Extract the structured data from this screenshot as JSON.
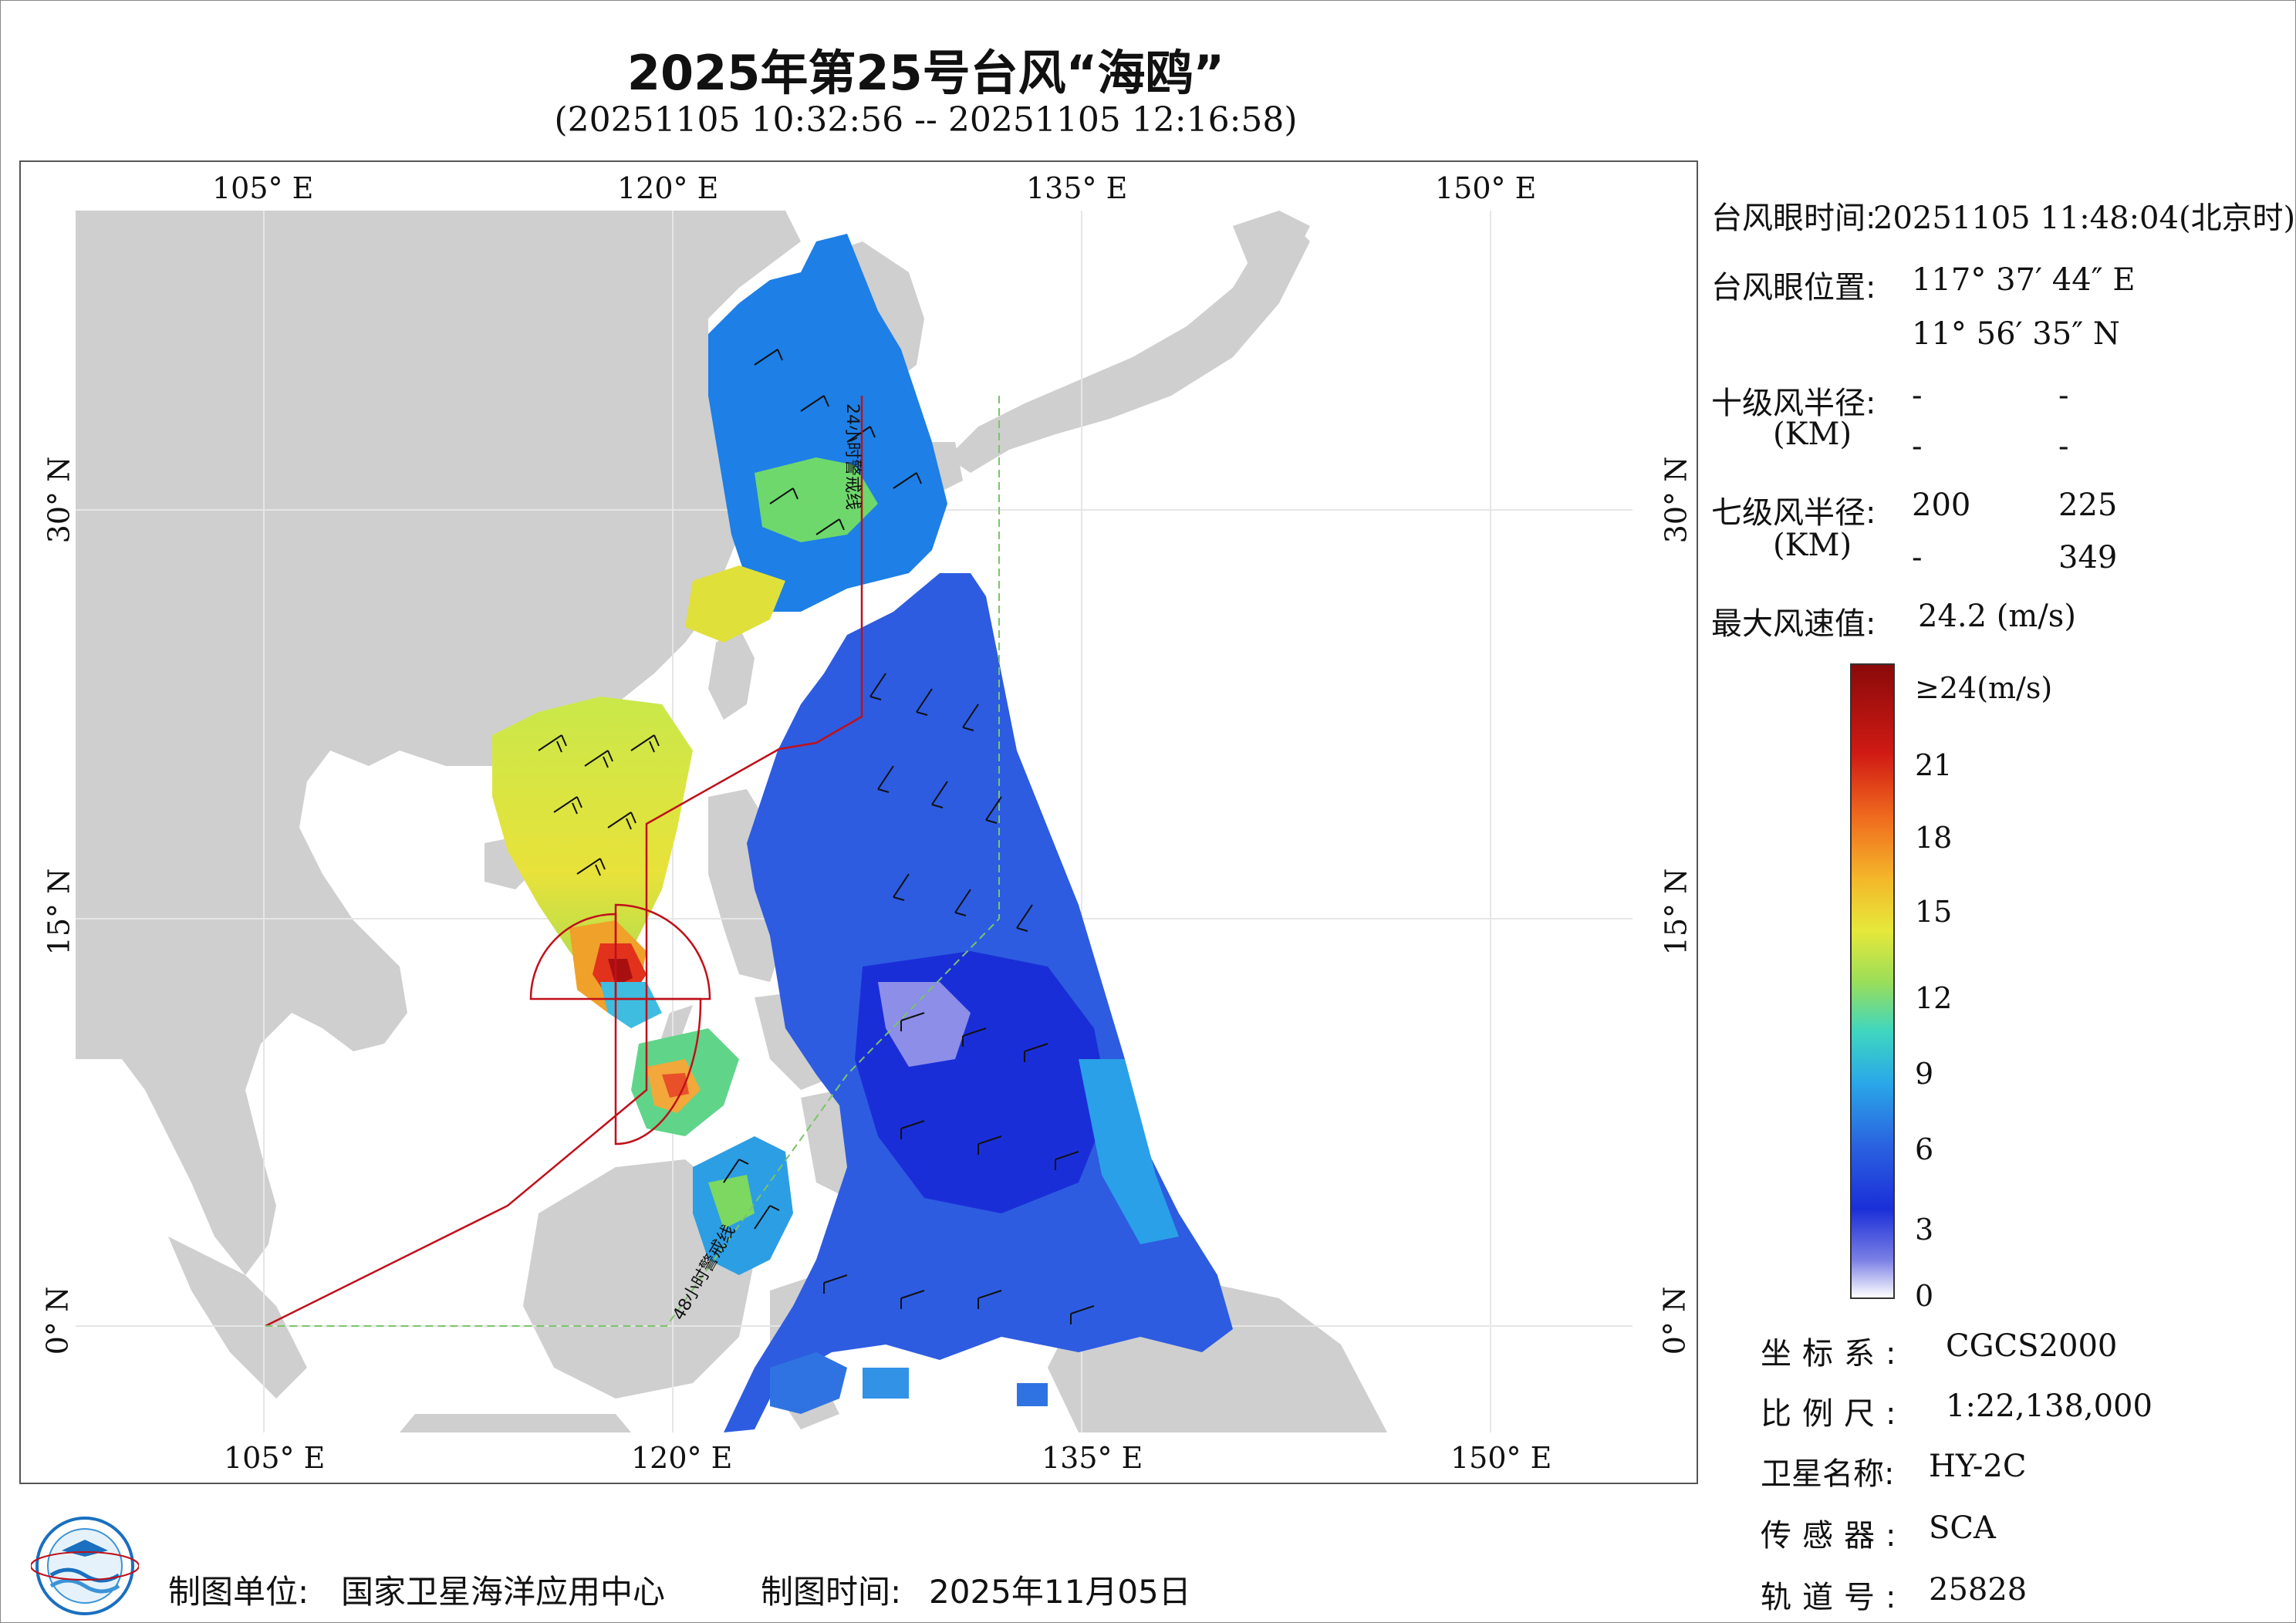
{
  "header": {
    "title": "2025年第25号台风“海鸥”",
    "subtitle": "(20251105 10:32:56 -- 20251105 12:16:58)"
  },
  "map": {
    "lon_ticks": [
      {
        "value": 105,
        "label": "105° E"
      },
      {
        "value": 120,
        "label": "120° E"
      },
      {
        "value": 135,
        "label": "135° E"
      },
      {
        "value": 150,
        "label": "150° E"
      }
    ],
    "lat_ticks": [
      {
        "value": 30,
        "label": "30° N"
      },
      {
        "value": 15,
        "label": "15° N"
      },
      {
        "value": 0,
        "label": "0° N"
      }
    ],
    "extent": {
      "lon_min": 98,
      "lon_max": 155,
      "lat_min": -4,
      "lat_max": 41
    },
    "warning_line_24h": "24小时警戒线",
    "warning_line_48h": "48小时警戒线",
    "colors": {
      "land": "#cfcfcf",
      "sea": "#ffffff",
      "warning_24h": "#c0101a",
      "warning_48h": "#7cc46a"
    }
  },
  "info": {
    "eye_time_label": "台风眼时间:",
    "eye_time_value": "20251105 11:48:04(北京时)",
    "eye_pos_label": "台风眼位置:",
    "eye_lon": "117° 37′ 44″ E",
    "eye_lat": "11° 56′ 35″ N",
    "r10_label": "十级风半径:",
    "r10_unit": "(KM)",
    "r10_values": [
      "-",
      "-",
      "-",
      "-"
    ],
    "r7_label": "七级风半径:",
    "r7_unit": "(KM)",
    "r7_values": [
      "200",
      "225",
      "-",
      "349"
    ],
    "max_wind_label": "最大风速值:",
    "max_wind_value": "24.2 (m/s)"
  },
  "legend": {
    "top_label": "≥24(m/s)",
    "ticks": [
      "21",
      "18",
      "15",
      "12",
      "9",
      "6",
      "3",
      "0"
    ],
    "values": [
      24,
      21,
      18,
      15,
      12,
      9,
      6,
      3,
      0
    ]
  },
  "meta": {
    "coord_label": "坐标系:",
    "coord_value": "CGCS2000",
    "scale_label": "比例尺:",
    "scale_value": "1:22,138,000",
    "sat_label": "卫星名称:",
    "sat_value": "HY-2C",
    "sensor_label": "传感器:",
    "sensor_value": "SCA",
    "orbit_label": "轨道号:",
    "orbit_value": "25828"
  },
  "footer": {
    "maker_label": "制图单位:",
    "maker_value": "国家卫星海洋应用中心",
    "time_label": "制图时间:",
    "time_value": "2025年11月05日"
  }
}
